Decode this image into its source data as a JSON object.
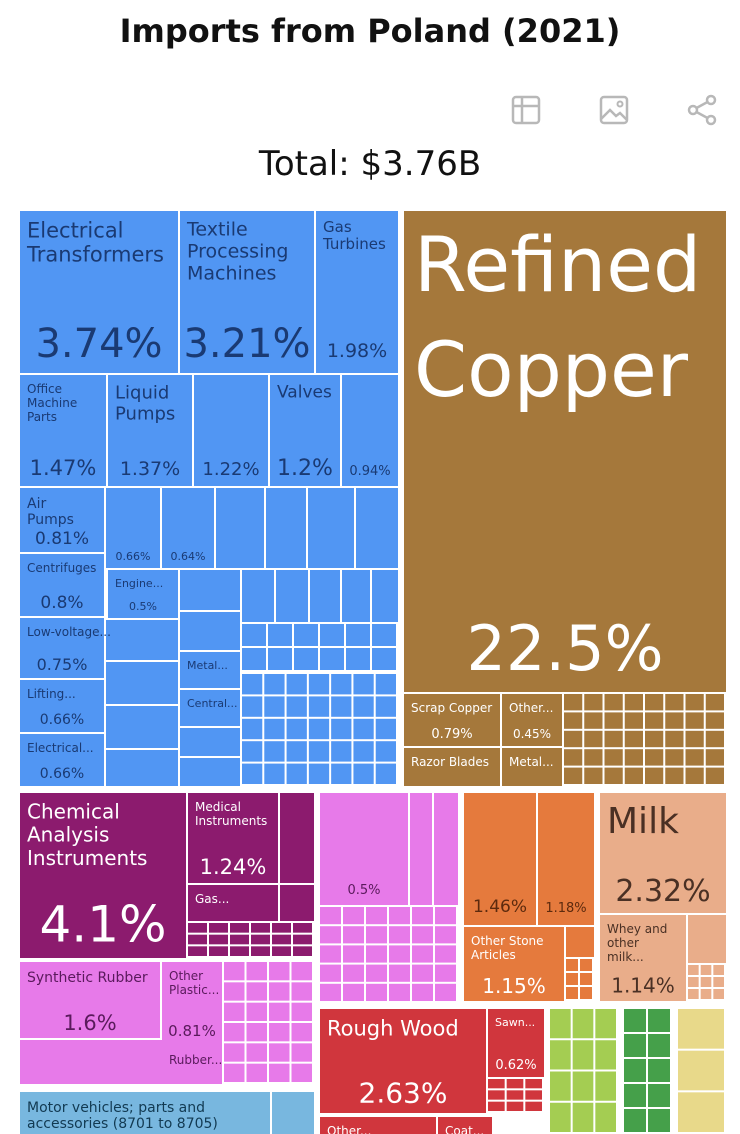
{
  "title": "Imports from Poland (2021)",
  "total_label": "Total: $3.76B",
  "toolbar": [
    {
      "icon": "table-icon"
    },
    {
      "icon": "image-icon"
    },
    {
      "icon": "share-icon"
    }
  ],
  "colors": {
    "machines": "#5196f3",
    "metals": "#a5783b",
    "instruments": "#8c1b6e",
    "plastics": "#e77ae9",
    "stone": "#e57a3d",
    "animal": "#e9ad8a",
    "wood": "#d0363d",
    "vehicles": "#78b7df",
    "vegetable": "#a4cd52",
    "foodstuffs": "#45a04a",
    "misc": "#e8d98a"
  },
  "chart_data": {
    "type": "treemap",
    "total": "$3.76B",
    "items": [
      {
        "name": "Refined Copper",
        "value": 22.5,
        "share_label": "22.5%",
        "sector": "metals"
      },
      {
        "name": "Chemical Analysis Instruments",
        "value": 4.1,
        "share_label": "4.1%",
        "sector": "instruments"
      },
      {
        "name": "Electrical Transformers",
        "value": 3.74,
        "share_label": "3.74%",
        "sector": "machines"
      },
      {
        "name": "Textile Processing Machines",
        "value": 3.21,
        "share_label": "3.21%",
        "sector": "machines"
      },
      {
        "name": "Rough Wood",
        "value": 2.63,
        "share_label": "2.63%",
        "sector": "wood"
      },
      {
        "name": "Milk",
        "value": 2.32,
        "share_label": "2.32%",
        "sector": "animal"
      },
      {
        "name": "Gas Turbines",
        "value": 1.98,
        "share_label": "1.98%",
        "sector": "machines"
      },
      {
        "name": "Synthetic Rubber",
        "value": 1.6,
        "share_label": "1.6%",
        "sector": "plastics"
      },
      {
        "name": "Office Machine Parts",
        "value": 1.47,
        "share_label": "1.47%",
        "sector": "machines"
      },
      {
        "name": "",
        "value": 1.46,
        "share_label": "1.46%",
        "sector": "stone"
      },
      {
        "name": "Liquid Pumps",
        "value": 1.37,
        "share_label": "1.37%",
        "sector": "machines"
      },
      {
        "name": "Medical Instruments",
        "value": 1.24,
        "share_label": "1.24%",
        "sector": "instruments"
      },
      {
        "name": "",
        "value": 1.22,
        "share_label": "1.22%",
        "sector": "machines"
      },
      {
        "name": "Valves",
        "value": 1.2,
        "share_label": "1.2%",
        "sector": "machines"
      },
      {
        "name": "",
        "value": 1.18,
        "share_label": "1.18%",
        "sector": "stone"
      },
      {
        "name": "Other Stone Articles",
        "value": 1.15,
        "share_label": "1.15%",
        "sector": "stone"
      },
      {
        "name": "Whey and other milk...",
        "value": 1.14,
        "share_label": "1.14%",
        "sector": "animal"
      },
      {
        "name": "",
        "value": 0.94,
        "share_label": "0.94%",
        "sector": "machines"
      },
      {
        "name": "Air Pumps",
        "value": 0.81,
        "share_label": "0.81%",
        "sector": "machines"
      },
      {
        "name": "Other Plastic...",
        "value": 0.81,
        "share_label": "0.81%",
        "sector": "plastics"
      },
      {
        "name": "Centrifuges",
        "value": 0.8,
        "share_label": "0.8%",
        "sector": "machines"
      },
      {
        "name": "Scrap Copper",
        "value": 0.79,
        "share_label": "0.79%",
        "sector": "metals"
      },
      {
        "name": "Low-voltage...",
        "value": 0.75,
        "share_label": "0.75%",
        "sector": "machines"
      },
      {
        "name": "Lifting...",
        "value": 0.66,
        "share_label": "0.66%",
        "sector": "machines"
      },
      {
        "name": "Electrical...",
        "value": 0.66,
        "share_label": "0.66%",
        "sector": "machines"
      },
      {
        "name": "",
        "value": 0.66,
        "share_label": "0.66%",
        "sector": "machines"
      },
      {
        "name": "",
        "value": 0.64,
        "share_label": "0.64%",
        "sector": "machines"
      },
      {
        "name": "Sawn...",
        "value": 0.62,
        "share_label": "0.62%",
        "sector": "wood"
      },
      {
        "name": "Engine...",
        "value": 0.5,
        "share_label": "0.5%",
        "sector": "machines"
      },
      {
        "name": "",
        "value": 0.5,
        "share_label": "0.5%",
        "sector": "plastics"
      },
      {
        "name": "Other...",
        "value": 0.45,
        "share_label": "0.45%",
        "sector": "metals"
      },
      {
        "name": "Razor Blades",
        "share_label": "",
        "sector": "metals"
      },
      {
        "name": "Metal...",
        "share_label": "",
        "sector": "metals"
      },
      {
        "name": "Metal...",
        "share_label": "",
        "sector": "machines"
      },
      {
        "name": "Central...",
        "share_label": "",
        "sector": "machines"
      },
      {
        "name": "Gas...",
        "share_label": "",
        "sector": "instruments"
      },
      {
        "name": "Rubber...",
        "share_label": "",
        "sector": "plastics"
      },
      {
        "name": "Motor vehicles; parts and accessories (8701 to 8705)",
        "share_label": "",
        "sector": "vehicles"
      },
      {
        "name": "Other...",
        "share_label": "",
        "sector": "wood"
      },
      {
        "name": "Coat...",
        "share_label": "",
        "sector": "wood"
      }
    ]
  }
}
